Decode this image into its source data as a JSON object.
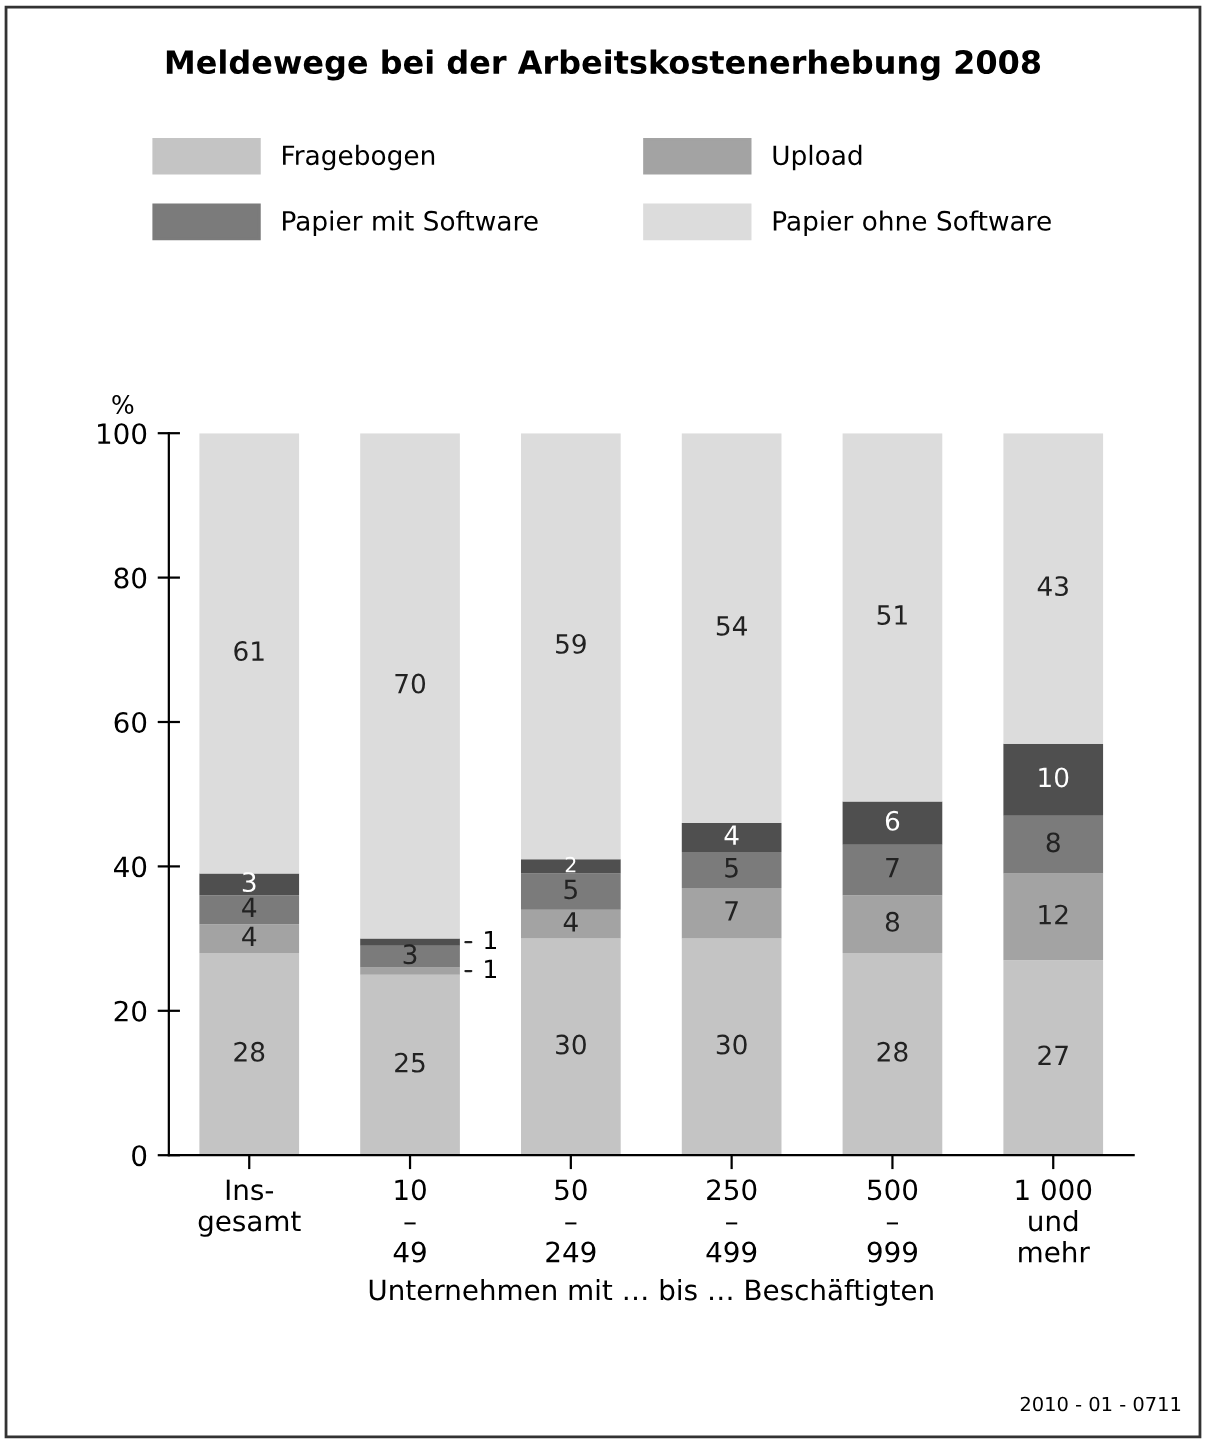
{
  "chart_data": {
    "type": "bar",
    "stacked": true,
    "title": "Meldewege bei der Arbeitskostenerhebung 2008",
    "ylabel": "%",
    "xlabel": "Unternehmen mit … bis … Beschäftigten",
    "categories": [
      "Ins-\ngesamt",
      "10\n–\n49",
      "50\n–\n249",
      "250\n–\n499",
      "500\n–\n999",
      "1 000\nund\nmehr"
    ],
    "series": [
      {
        "name": "Fragebogen",
        "color": "#c4c4c4",
        "values": [
          28,
          25,
          30,
          30,
          28,
          27
        ],
        "value_labels": [
          "28",
          "25",
          "30",
          "30",
          "28",
          "27"
        ]
      },
      {
        "name": "Upload",
        "color": "#a3a3a3",
        "values": [
          4,
          1,
          4,
          7,
          8,
          12
        ],
        "value_labels": [
          "4",
          "1",
          "4",
          "7",
          "8",
          "12"
        ]
      },
      {
        "name": "Papier mit Software",
        "color": "#7b7b7b",
        "values": [
          4,
          3,
          5,
          5,
          7,
          8
        ],
        "value_labels": [
          "4",
          "3",
          "5",
          "5",
          "7",
          "8"
        ]
      },
      {
        "color": "#4f4f4f",
        "values": [
          3,
          1,
          2,
          4,
          6,
          10
        ],
        "value_labels": [
          "3",
          "1",
          "2",
          "4",
          "6",
          "10"
        ]
      },
      {
        "name": "Papier ohne Software",
        "color": "#dcdcdc",
        "values": [
          61,
          70,
          59,
          54,
          51,
          43
        ],
        "value_labels": [
          "61",
          "70",
          "59",
          "54",
          "51",
          "43"
        ]
      }
    ],
    "ylim": [
      0,
      100
    ],
    "yticks": [
      0,
      20,
      40,
      60,
      80,
      100
    ],
    "grid": false,
    "legend": "top",
    "annotations": [
      "2010 - 01 - 0711"
    ]
  }
}
